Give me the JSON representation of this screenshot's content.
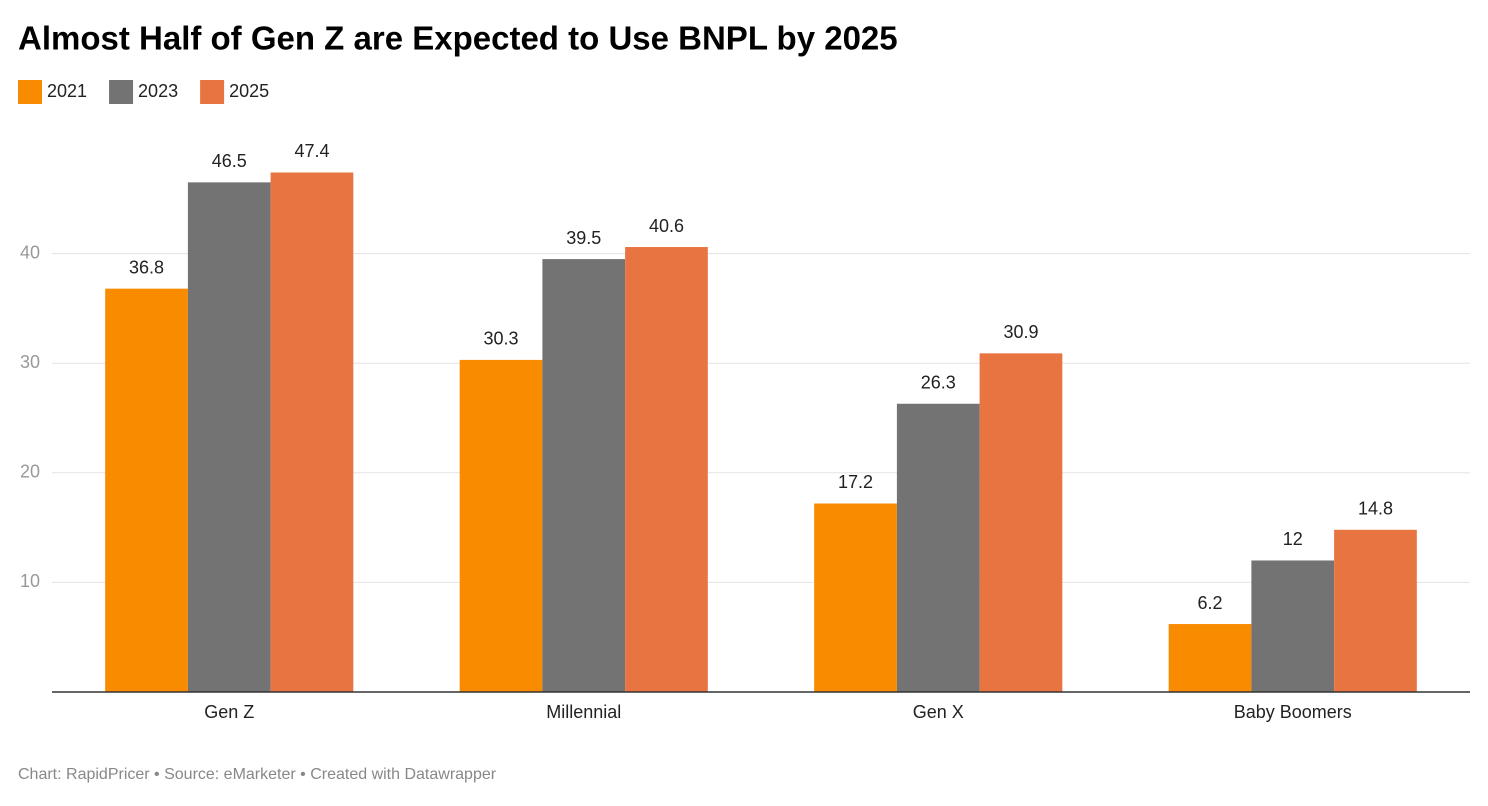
{
  "chart_data": {
    "type": "bar",
    "title": "Almost Half of Gen Z are Expected to Use BNPL by 2025",
    "categories": [
      "Gen Z",
      "Millennial",
      "Gen X",
      "Baby Boomers"
    ],
    "series": [
      {
        "name": "2021",
        "color": "#f88b00",
        "values": [
          36.8,
          30.3,
          17.2,
          6.2
        ]
      },
      {
        "name": "2023",
        "color": "#737373",
        "values": [
          46.5,
          39.5,
          26.3,
          12
        ]
      },
      {
        "name": "2025",
        "color": "#e87541",
        "values": [
          47.4,
          40.6,
          30.9,
          14.8
        ]
      }
    ],
    "ylim": [
      0,
      50
    ],
    "yticks": [
      10,
      20,
      30,
      40
    ],
    "grid": true,
    "legend": "top-left",
    "footer": "Chart: RapidPricer • Source: eMarketer • Created with Datawrapper"
  }
}
